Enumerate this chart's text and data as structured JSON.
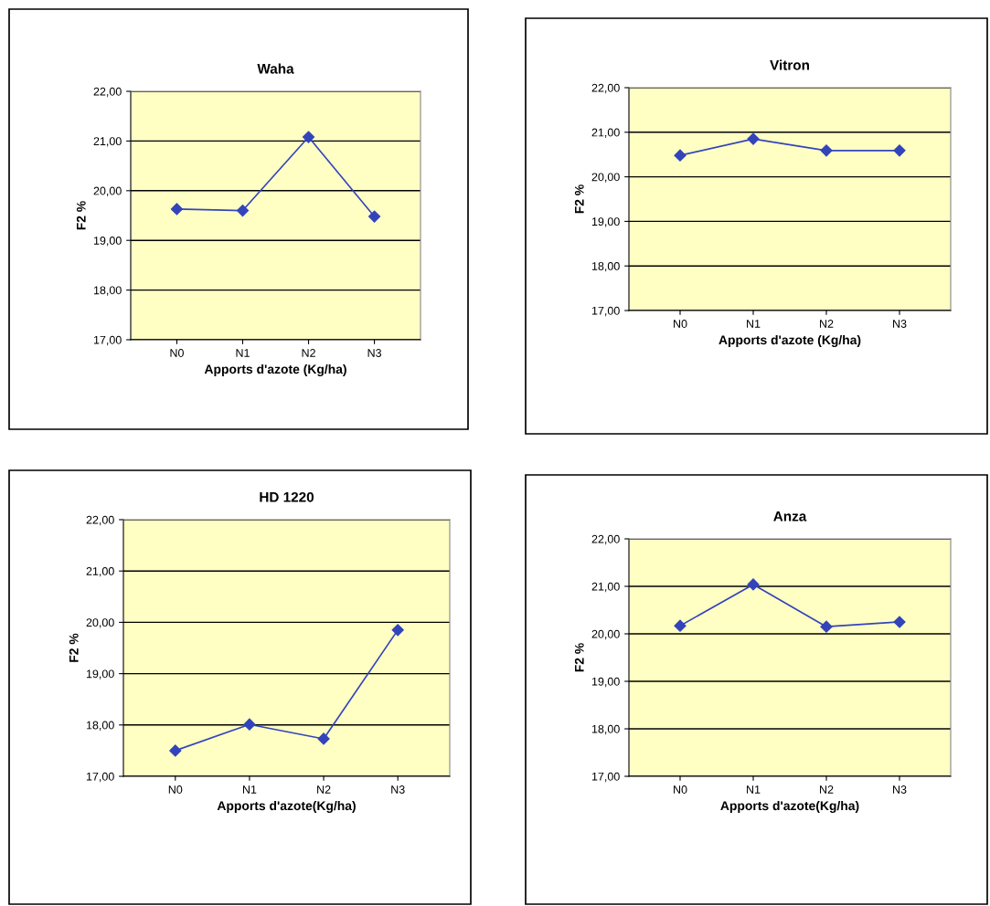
{
  "chart_data": [
    {
      "type": "line",
      "title": "Waha",
      "xlabel": "Apports d'azote (Kg/ha)",
      "ylabel": "F2 %",
      "categories": [
        "N0",
        "N1",
        "N2",
        "N3"
      ],
      "series": [
        {
          "color": "#3344bb",
          "values": [
            19.63,
            19.6,
            21.08,
            19.48
          ]
        }
      ],
      "ylim": [
        17,
        22
      ],
      "yticks": [
        {
          "value": 17,
          "label": "17,00"
        },
        {
          "value": 18,
          "label": "18,00"
        },
        {
          "value": 19,
          "label": "19,00"
        },
        {
          "value": 20,
          "label": "20,00"
        },
        {
          "value": 21,
          "label": "21,00"
        },
        {
          "value": 22,
          "label": "22,00"
        }
      ],
      "grid": "y",
      "marker": "diamond",
      "line_style": "solid"
    },
    {
      "type": "line",
      "title": "Vitron",
      "xlabel": "Apports d'azote (Kg/ha)",
      "ylabel": "F2 %",
      "categories": [
        "N0",
        "N1",
        "N2",
        "N3"
      ],
      "series": [
        {
          "color": "#3344bb",
          "values": [
            20.48,
            20.85,
            20.59,
            20.59
          ]
        }
      ],
      "ylim": [
        17,
        22
      ],
      "yticks": [
        {
          "value": 17,
          "label": "17,00"
        },
        {
          "value": 18,
          "label": "18,00"
        },
        {
          "value": 19,
          "label": "19,00"
        },
        {
          "value": 20,
          "label": "20,00"
        },
        {
          "value": 21,
          "label": "21,00"
        },
        {
          "value": 22,
          "label": "22,00"
        }
      ],
      "grid": "y",
      "marker": "diamond",
      "line_style": "solid"
    },
    {
      "type": "line",
      "title": "HD 1220",
      "xlabel": "Apports d'azote(Kg/ha)",
      "ylabel": "F2 %",
      "categories": [
        "N0",
        "N1",
        "N2",
        "N3"
      ],
      "series": [
        {
          "color": "#3344bb",
          "values": [
            17.5,
            18.01,
            17.73,
            19.85
          ]
        }
      ],
      "ylim": [
        17,
        22
      ],
      "yticks": [
        {
          "value": 17,
          "label": "17,00"
        },
        {
          "value": 18,
          "label": "18,00"
        },
        {
          "value": 19,
          "label": "19,00"
        },
        {
          "value": 20,
          "label": "20,00"
        },
        {
          "value": 21,
          "label": "21,00"
        },
        {
          "value": 22,
          "label": "22,00"
        }
      ],
      "grid": "y",
      "marker": "diamond",
      "line_style": "solid"
    },
    {
      "type": "line",
      "title": "Anza",
      "xlabel": "Apports d'azote(Kg/ha)",
      "ylabel": "F2 %",
      "categories": [
        "N0",
        "N1",
        "N2",
        "N3"
      ],
      "series": [
        {
          "color": "#3344bb",
          "values": [
            20.17,
            21.04,
            20.15,
            20.25
          ]
        }
      ],
      "ylim": [
        17,
        22
      ],
      "yticks": [
        {
          "value": 17,
          "label": "17,00"
        },
        {
          "value": 18,
          "label": "18,00"
        },
        {
          "value": 19,
          "label": "19,00"
        },
        {
          "value": 20,
          "label": "20,00"
        },
        {
          "value": 21,
          "label": "21,00"
        },
        {
          "value": 22,
          "label": "22,00"
        }
      ],
      "grid": "y",
      "marker": "diamond",
      "line_style": "solid"
    }
  ]
}
